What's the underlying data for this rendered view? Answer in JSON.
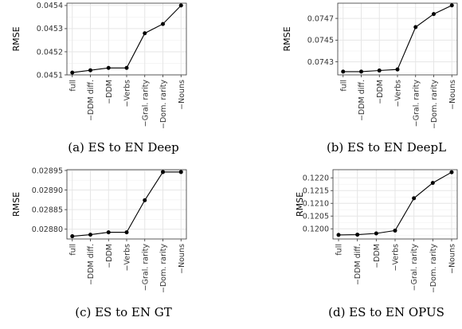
{
  "chart_data": [
    {
      "type": "line",
      "caption": "(a) ES to EN Deep",
      "ylabel": "RMSE",
      "categories": [
        "full",
        "−DDM diff.",
        "−DDM",
        "−Verbs",
        "−Gral. rarity",
        "−Dom. rarity",
        "−Nouns"
      ],
      "values": [
        0.04511,
        0.04512,
        0.04513,
        0.04513,
        0.04528,
        0.04532,
        0.0454
      ],
      "ylim": [
        0.0451,
        0.04541
      ],
      "yticks": [
        0.0451,
        0.0452,
        0.0453,
        0.0454
      ],
      "ytick_labels": [
        "0.0451",
        "0.0452",
        "0.0453",
        "0.0454"
      ],
      "grid": true
    },
    {
      "type": "line",
      "caption": "(b) ES to EN DeepL",
      "ylabel": "RMSE",
      "categories": [
        "full",
        "−DDM diff.",
        "−DDM",
        "−Verbs",
        "−Gral. rarity",
        "−Dom. rarity",
        "−Nouns"
      ],
      "values": [
        0.07421,
        0.07421,
        0.07422,
        0.07423,
        0.07462,
        0.07474,
        0.07482
      ],
      "ylim": [
        0.07418,
        0.07484
      ],
      "yticks": [
        0.0743,
        0.0745,
        0.0747
      ],
      "ytick_labels": [
        "0.0743",
        "0.0745",
        "0.0747"
      ],
      "grid": true
    },
    {
      "type": "line",
      "caption": "(c) ES to EN GT",
      "ylabel": "RMSE",
      "categories": [
        "full",
        "−DDM diff.",
        "−DDM",
        "−Verbs",
        "−Gral. rarity",
        "−Dom. rarity",
        "−Nouns"
      ],
      "values": [
        0.028782,
        0.028786,
        0.028792,
        0.028792,
        0.028874,
        0.028946,
        0.028946
      ],
      "ylim": [
        0.028775,
        0.028952
      ],
      "yticks": [
        0.0288,
        0.02885,
        0.0289,
        0.02895
      ],
      "ytick_labels": [
        "0.02880",
        "0.02885",
        "0.02890",
        "0.02895"
      ],
      "grid": true
    },
    {
      "type": "line",
      "caption": "(d) ES to EN OPUS",
      "ylabel": "RMSE",
      "categories": [
        "full",
        "−DDM diff.",
        "−DDM",
        "−Verbs",
        "−Gral. rarity",
        "−Dom. rarity",
        "−Nouns"
      ],
      "values": [
        0.11976,
        0.11977,
        0.11982,
        0.11993,
        0.1212,
        0.1218,
        0.12222
      ],
      "ylim": [
        0.1196,
        0.12232
      ],
      "yticks": [
        0.12,
        0.1205,
        0.121,
        0.1215,
        0.122
      ],
      "ytick_labels": [
        "0.1200",
        "0.1205",
        "0.1210",
        "0.1215",
        "0.1220"
      ],
      "grid": true
    }
  ]
}
